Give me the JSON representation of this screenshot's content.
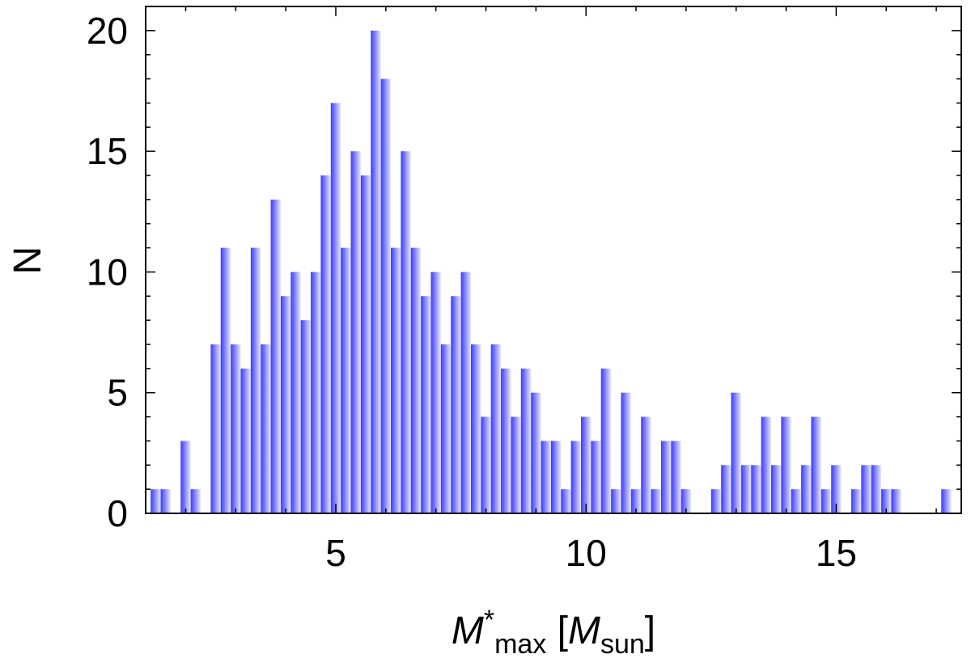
{
  "chart_data": {
    "type": "bar",
    "title": "",
    "xlabel": {
      "main": "M",
      "sup": "*",
      "sub": "max",
      "bracket_open": " [",
      "unit_main": "M",
      "unit_sub": "sun",
      "bracket_close": "]"
    },
    "ylabel": "N",
    "xlim": [
      1.2,
      17.5
    ],
    "ylim": [
      0,
      21
    ],
    "xticks": [
      5,
      10,
      15
    ],
    "yticks": [
      0,
      5,
      10,
      15,
      20
    ],
    "bin_width": 0.2,
    "bar_color": "#3a3aff",
    "bar_highlight": "#e8e8ff",
    "x": [
      1.4,
      1.6,
      1.8,
      2.0,
      2.2,
      2.4,
      2.6,
      2.8,
      3.0,
      3.2,
      3.4,
      3.6,
      3.8,
      4.0,
      4.2,
      4.4,
      4.6,
      4.8,
      5.0,
      5.2,
      5.4,
      5.6,
      5.8,
      6.0,
      6.2,
      6.4,
      6.6,
      6.8,
      7.0,
      7.2,
      7.4,
      7.6,
      7.8,
      8.0,
      8.2,
      8.4,
      8.6,
      8.8,
      9.0,
      9.2,
      9.4,
      9.6,
      9.8,
      10.0,
      10.2,
      10.4,
      10.6,
      10.8,
      11.0,
      11.2,
      11.4,
      11.6,
      11.8,
      12.0,
      12.2,
      12.4,
      12.6,
      12.8,
      13.0,
      13.2,
      13.4,
      13.6,
      13.8,
      14.0,
      14.2,
      14.4,
      14.6,
      14.8,
      15.0,
      15.2,
      15.4,
      15.6,
      15.8,
      16.0,
      16.2,
      16.4,
      16.6,
      16.8,
      17.0,
      17.2
    ],
    "values": [
      1,
      1,
      0,
      3,
      1,
      0,
      7,
      11,
      7,
      6,
      11,
      7,
      13,
      9,
      10,
      8,
      10,
      14,
      17,
      11,
      15,
      14,
      20,
      18,
      11,
      15,
      11,
      9,
      10,
      7,
      9,
      10,
      7,
      4,
      7,
      6,
      4,
      6,
      5,
      3,
      3,
      1,
      3,
      4,
      3,
      6,
      1,
      5,
      1,
      4,
      1,
      3,
      3,
      1,
      0,
      0,
      1,
      2,
      5,
      2,
      2,
      4,
      2,
      4,
      1,
      2,
      4,
      1,
      2,
      0,
      1,
      2,
      2,
      1,
      1,
      0,
      0,
      0,
      0,
      1
    ]
  }
}
